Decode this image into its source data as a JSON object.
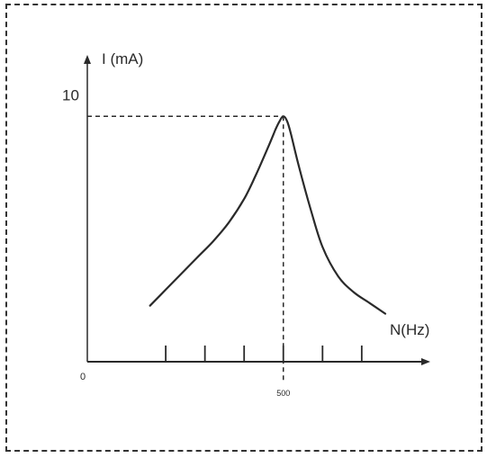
{
  "chart_data": {
    "type": "line",
    "title": "",
    "xlabel": "N(Hz)",
    "ylabel": "I (mA)",
    "origin_label": "0",
    "x_tick_labels": [
      {
        "x": 500,
        "text": "500"
      }
    ],
    "y_tick_labels": [
      {
        "y": 10,
        "text": "10"
      }
    ],
    "x_ticks": [
      200,
      300,
      400,
      500,
      600,
      700
    ],
    "xlim": [
      0,
      760
    ],
    "ylim": [
      0,
      11.5
    ],
    "series": [
      {
        "name": "",
        "x": [
          160,
          200,
          240,
          280,
          320,
          360,
          400,
          430,
          460,
          480,
          490,
          500,
          510,
          520,
          540,
          570,
          600,
          640,
          680,
          720,
          760
        ],
        "y": [
          2.1,
          2.7,
          3.3,
          3.9,
          4.5,
          5.2,
          6.1,
          7.0,
          8.0,
          8.7,
          9.0,
          9.2,
          9.0,
          8.5,
          7.3,
          5.7,
          4.3,
          3.2,
          2.6,
          2.2,
          1.8
        ]
      }
    ],
    "resonance": {
      "x": 500,
      "y": 9.2
    },
    "grid": false,
    "legend": "none",
    "colors": {
      "line": "#2a2a2a",
      "guide": "#2a2a2a"
    }
  }
}
